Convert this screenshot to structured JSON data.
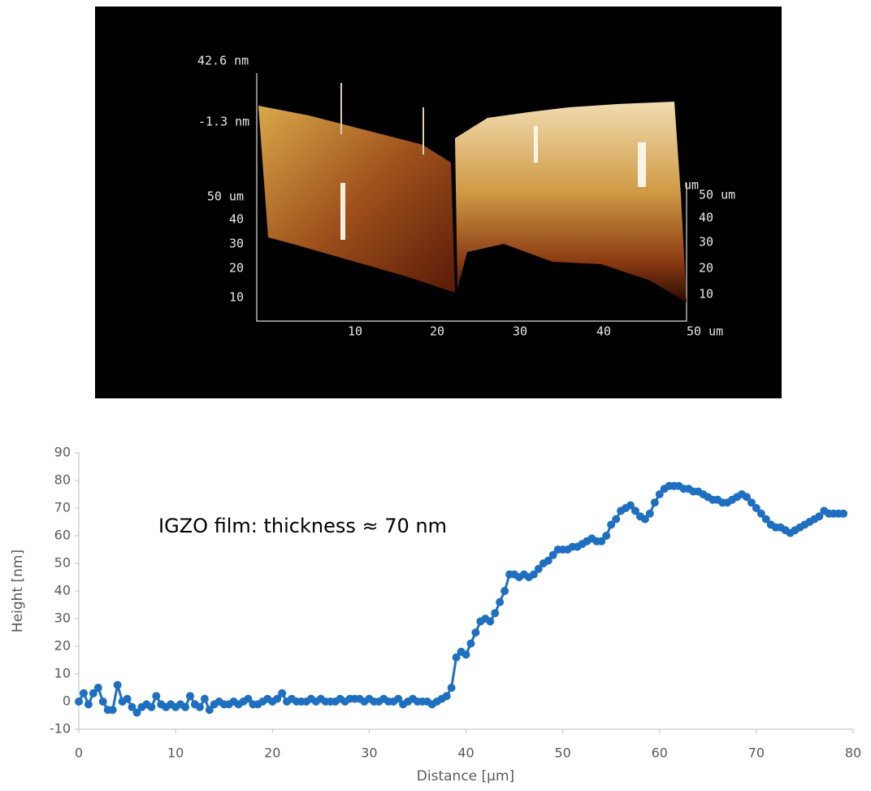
{
  "afm_image": {
    "z_labels": [
      "42.6 nm",
      "-1.3 nm"
    ],
    "left_y_labels": [
      "50 um",
      "40",
      "30",
      "20",
      "10"
    ],
    "right_unit": "um",
    "right_y_labels": [
      "50 um",
      "40",
      "30",
      "20",
      "10"
    ],
    "x_labels": [
      "10",
      "20",
      "30",
      "40",
      "50 um"
    ]
  },
  "chart_data": {
    "type": "line",
    "annotation": "IGZO film: thickness ≈ 70 nm",
    "x_label": "Distance [µm]",
    "y_label": "Height [nm]",
    "xlim": [
      0,
      80
    ],
    "xticks": [
      0,
      10,
      20,
      30,
      40,
      50,
      60,
      70,
      80
    ],
    "ylim": [
      -10,
      90
    ],
    "yticks": [
      -10,
      0,
      10,
      20,
      30,
      40,
      50,
      60,
      70,
      80,
      90
    ],
    "grid": false,
    "marker": "circle",
    "x": [
      0,
      0.5,
      1,
      1.5,
      2,
      2.5,
      3,
      3.5,
      4,
      4.5,
      5,
      5.5,
      6,
      6.5,
      7,
      7.5,
      8,
      8.5,
      9,
      9.5,
      10,
      10.5,
      11,
      11.5,
      12,
      12.5,
      13,
      13.5,
      14,
      14.5,
      15,
      15.5,
      16,
      16.5,
      17,
      17.5,
      18,
      18.5,
      19,
      19.5,
      20,
      20.5,
      21,
      21.5,
      22,
      22.5,
      23,
      23.5,
      24,
      24.5,
      25,
      25.5,
      26,
      26.5,
      27,
      27.5,
      28,
      28.5,
      29,
      29.5,
      30,
      30.5,
      31,
      31.5,
      32,
      32.5,
      33,
      33.5,
      34,
      34.5,
      35,
      35.5,
      36,
      36.5,
      37,
      37.5,
      38,
      38.5,
      39,
      39.5,
      40,
      40.5,
      41,
      41.5,
      42,
      42.5,
      43,
      43.5,
      44,
      44.5,
      45,
      45.5,
      46,
      46.5,
      47,
      47.5,
      48,
      48.5,
      49,
      49.5,
      50,
      50.5,
      51,
      51.5,
      52,
      52.5,
      53,
      53.5,
      54,
      54.5,
      55,
      55.5,
      56,
      56.5,
      57,
      57.5,
      58,
      58.5,
      59,
      59.5,
      60,
      60.5,
      61,
      61.5,
      62,
      62.5,
      63,
      63.5,
      64,
      64.5,
      65,
      65.5,
      66,
      66.5,
      67,
      67.5,
      68,
      68.5,
      69,
      69.5,
      70,
      70.5,
      71,
      71.5,
      72,
      72.5,
      73,
      73.5,
      74,
      74.5,
      75,
      75.5,
      76,
      76.5,
      77,
      77.5,
      78,
      78.5,
      79
    ],
    "series": [
      {
        "color": "#1f6fc1",
        "values": [
          0,
          3,
          -1,
          3,
          5,
          0,
          -3,
          -3,
          6,
          0,
          1,
          -2,
          -4,
          -2,
          -1,
          -2,
          2,
          -1,
          -2,
          -1,
          -2,
          -1,
          -2,
          2,
          -1,
          -2,
          1,
          -3,
          -1,
          0,
          -1,
          -1,
          0,
          -1,
          0,
          1,
          -1,
          -1,
          0,
          1,
          0,
          1,
          3,
          0,
          1,
          0,
          0,
          0,
          1,
          0,
          1,
          0,
          0,
          0,
          1,
          0,
          1,
          1,
          1,
          0,
          1,
          0,
          0,
          1,
          0,
          0,
          1,
          -1,
          0,
          1,
          0,
          0,
          0,
          -1,
          0,
          1,
          2,
          5,
          16,
          18,
          17,
          21,
          25,
          29,
          30,
          29,
          32,
          36,
          40,
          46,
          46,
          45,
          46,
          45,
          46,
          48,
          50,
          51,
          53,
          55,
          55,
          55,
          56,
          56,
          57,
          58,
          59,
          58,
          58,
          60,
          64,
          66,
          69,
          70,
          71,
          69,
          67,
          66,
          68,
          72,
          75,
          77,
          78,
          78,
          78,
          77,
          77,
          76,
          76,
          75,
          74,
          73,
          73,
          72,
          72,
          73,
          74,
          75,
          74,
          72,
          70,
          68,
          66,
          64,
          63,
          63,
          62,
          61,
          62,
          63,
          64,
          65,
          66,
          67,
          69,
          68,
          68,
          68,
          68
        ]
      }
    ]
  }
}
